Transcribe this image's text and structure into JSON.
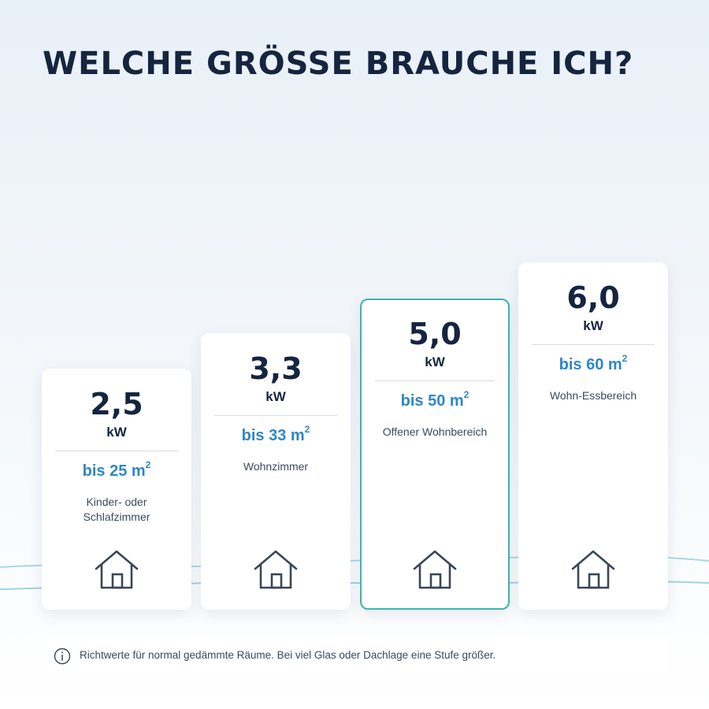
{
  "headline": "WELCHE GRÖSSE BRAUCHE ICH?",
  "colors": {
    "title": "#15253f",
    "accent_blue": "#2e86c9",
    "highlight_border": "#3db3b3",
    "wave": "#8ccbe0"
  },
  "cards": [
    {
      "power": "2,5",
      "unit": "kW",
      "area_prefix": "bis 25 m",
      "area_exp": "2",
      "room": "Kinder- oder Schlafzimmer",
      "highlighted": false,
      "icon": "house-icon"
    },
    {
      "power": "3,3",
      "unit": "kW",
      "area_prefix": "bis 33 m",
      "area_exp": "2",
      "room": "Wohnzimmer",
      "highlighted": false,
      "icon": "house-icon"
    },
    {
      "power": "5,0",
      "unit": "kW",
      "area_prefix": "bis 50 m",
      "area_exp": "2",
      "room": "Offener Wohnbereich",
      "highlighted": true,
      "icon": "house-icon"
    },
    {
      "power": "6,0",
      "unit": "kW",
      "area_prefix": "bis 60 m",
      "area_exp": "2",
      "room": "Wohn-Essbereich",
      "highlighted": false,
      "icon": "house-icon"
    }
  ],
  "note": {
    "icon": "info-icon",
    "text": "Richtwerte für normal gedämmte Räume. Bei viel Glas oder Dachlage eine Stufe größer."
  }
}
